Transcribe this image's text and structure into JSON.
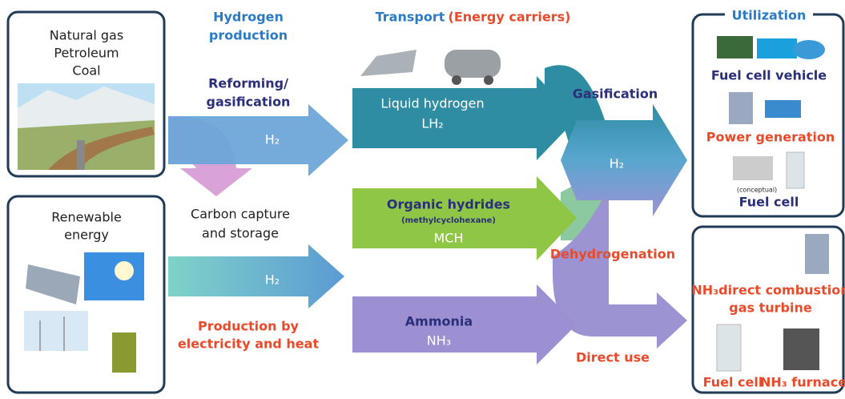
{
  "sources": [
    {
      "lines": [
        "Natural gas",
        "Petroleum",
        "Coal"
      ]
    },
    {
      "lines": [
        "Renewable",
        "energy"
      ]
    }
  ],
  "production": {
    "title": [
      "Hydrogen",
      "production"
    ],
    "fossil_route": [
      "Reforming/",
      "gasification"
    ],
    "fossil_product": "H₂",
    "ccs": [
      "Carbon capture",
      "and storage"
    ],
    "renewable_product": "H₂",
    "renewable_route": [
      "Production by",
      "electricity and heat"
    ]
  },
  "transport": {
    "title": "Transport",
    "subtitle": "(Energy carriers)",
    "carriers": [
      {
        "name": "Liquid hydrogen",
        "formula": "LH₂"
      },
      {
        "name": "Organic hydrides",
        "note": "(methylcyclohexane)",
        "formula": "MCH"
      },
      {
        "name": "Ammonia",
        "formula": "NH₃"
      }
    ]
  },
  "conversion": {
    "gasification": "Gasification",
    "product": "H₂",
    "dehydrogenation": "Dehydrogenation",
    "direct": "Direct use"
  },
  "utilization": {
    "title": "Utilization",
    "hydrogen_uses": [
      "Fuel cell vehicle",
      "Power generation",
      "Fuel cell"
    ],
    "note": "(conceptual)",
    "ammonia_uses": {
      "turbine": [
        "NH₃direct combustion",
        "gas turbine"
      ],
      "fuel_cell": "Fuel cell",
      "furnace": "NH₃ furnace"
    }
  }
}
